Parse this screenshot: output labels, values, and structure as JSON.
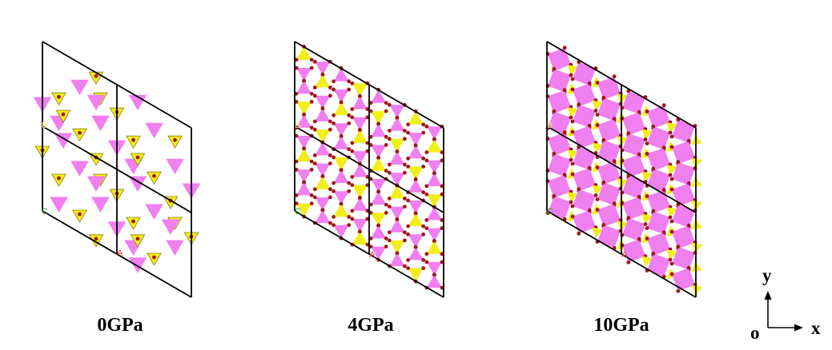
{
  "panels": [
    {
      "label": "0GPa",
      "motif": "open"
    },
    {
      "label": "4GPa",
      "motif": "kagome"
    },
    {
      "label": "10GPa",
      "motif": "square"
    }
  ],
  "cell_axis_letters": {
    "a": "A",
    "b": "B",
    "c": "C"
  },
  "axes": {
    "y": "y",
    "x": "x",
    "origin": "o"
  },
  "colors": {
    "octahedron": "#f07ff0",
    "tetrahedron": "#f2ee1a",
    "tetrahedron_edge": "#8a7a10",
    "atom": "#a01818",
    "cell_line": "#000000",
    "letter_a": "#e83030",
    "letter_b": "#e8e070",
    "letter_c": "#28b028"
  }
}
